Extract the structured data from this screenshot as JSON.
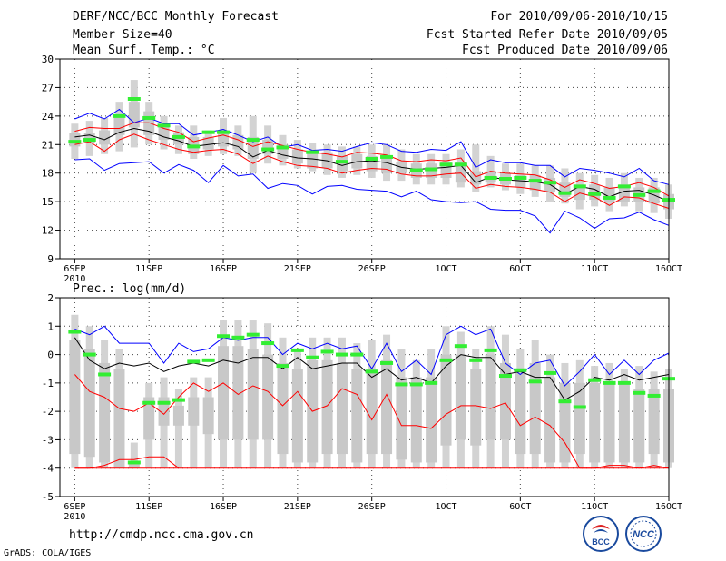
{
  "header": {
    "title": "DERF/NCC/BCC Monthly Forecast",
    "member_size": "Member Size=40",
    "variable": "Mean Surf. Temp.: °C",
    "forecast_period": "For 2010/09/06-2010/10/15",
    "started_date": "Fcst Started Refer Date 2010/09/05",
    "produced_date": "Fcst Produced Date 2010/09/06"
  },
  "footer": {
    "url": "http://cmdp.ncc.cma.gov.cn",
    "grads": "GrADS: COLA/IGES",
    "logo1_text": "BCC",
    "logo2_text": "NCC"
  },
  "colors": {
    "bar": "#d3d3d3",
    "median": "#33ee33",
    "mean": "#000000",
    "upper": "#0000ff",
    "lower": "#ff0000",
    "inner": "#cc3333"
  },
  "chart_data": [
    {
      "type": "boxplot_ensemble",
      "title": "Mean Surf. Temp.: °C",
      "x_tick_labels": [
        "6SEP\n2010",
        "11SEP",
        "16SEP",
        "21SEP",
        "26SEP",
        "1OCT",
        "6OCT",
        "11OCT",
        "16OCT"
      ],
      "x_tick_days": [
        1,
        6,
        11,
        16,
        21,
        26,
        31,
        36,
        41
      ],
      "xlim": [
        0,
        41
      ],
      "ylim": [
        9,
        30
      ],
      "yticks": [
        9,
        12,
        15,
        18,
        21,
        24,
        27,
        30
      ],
      "bar_low": [
        19.5,
        19.8,
        20.0,
        20.3,
        20.7,
        21.0,
        20.5,
        20.0,
        19.5,
        19.8,
        20.0,
        19.8,
        18.0,
        19.0,
        18.8,
        18.5,
        18.2,
        17.8,
        17.5,
        17.8,
        17.5,
        17.2,
        17.2,
        16.8,
        16.8,
        16.8,
        16.5,
        16.0,
        16.5,
        16.2,
        15.8,
        15.5,
        15.0,
        14.8,
        14.2,
        14.5,
        14.0,
        14.5,
        14.0,
        13.8,
        13.2
      ],
      "bar_high": [
        23.2,
        23.5,
        23.8,
        25.5,
        27.8,
        25.5,
        24.0,
        23.0,
        23.0,
        22.5,
        23.8,
        23.0,
        24.0,
        23.0,
        22.0,
        21.5,
        21.2,
        21.0,
        20.8,
        20.8,
        21.0,
        21.0,
        20.5,
        20.0,
        20.0,
        20.0,
        20.5,
        21.0,
        19.8,
        19.0,
        19.0,
        18.8,
        18.8,
        18.5,
        18.0,
        17.8,
        17.5,
        18.0,
        17.5,
        17.5,
        16.8
      ],
      "inner_low": [
        20.8,
        21.2,
        21.0,
        22.0,
        22.8,
        22.0,
        21.5,
        21.0,
        20.0,
        20.5,
        20.8,
        20.5,
        19.5,
        20.0,
        19.5,
        19.0,
        18.5,
        18.5,
        18.2,
        18.5,
        18.2,
        18.0,
        18.0,
        17.5,
        17.5,
        17.5,
        17.0,
        16.8,
        17.0,
        16.8,
        16.5,
        16.2,
        16.0,
        15.5,
        15.2,
        15.2,
        15.0,
        15.0,
        15.0,
        14.8,
        14.2
      ],
      "inner_high": [
        22.2,
        22.2,
        22.5,
        24.0,
        25.5,
        24.5,
        23.0,
        22.3,
        21.8,
        21.8,
        22.5,
        22.0,
        21.8,
        21.5,
        21.0,
        20.5,
        20.2,
        20.2,
        19.8,
        20.0,
        19.8,
        19.8,
        19.2,
        19.0,
        19.0,
        19.2,
        19.2,
        18.2,
        18.2,
        18.0,
        17.8,
        17.8,
        17.5,
        17.0,
        16.8,
        16.8,
        16.5,
        16.8,
        16.5,
        16.5,
        15.8
      ],
      "median": [
        21.3,
        21.5,
        null,
        24.0,
        25.8,
        23.8,
        23.0,
        21.8,
        20.8,
        22.3,
        22.3,
        null,
        21.5,
        20.5,
        20.7,
        null,
        20.2,
        null,
        19.2,
        null,
        19.5,
        19.7,
        null,
        18.3,
        18.4,
        18.9,
        18.9,
        null,
        17.5,
        17.4,
        17.5,
        17.2,
        17.0,
        15.9,
        16.6,
        15.8,
        15.4,
        16.6,
        15.7,
        16.1,
        15.2
      ],
      "series": [
        {
          "name": "max",
          "color": "#0000ff",
          "values": [
            23.7,
            24.3,
            23.7,
            24.7,
            23.3,
            23.8,
            23.2,
            23.2,
            22.0,
            22.3,
            22.6,
            22.0,
            21.3,
            21.8,
            20.7,
            21.0,
            20.4,
            20.5,
            20.3,
            20.8,
            21.2,
            21.0,
            20.3,
            20.2,
            20.5,
            20.4,
            21.3,
            18.6,
            19.4,
            19.1,
            19.1,
            18.8,
            18.8,
            17.6,
            18.5,
            18.3,
            18.0,
            17.6,
            18.5,
            17.2,
            16.8
          ]
        },
        {
          "name": "ens_upper",
          "color": "#ff0000",
          "values": [
            22.4,
            22.8,
            22.7,
            22.7,
            23.3,
            23.3,
            22.7,
            22.3,
            21.3,
            21.7,
            22.0,
            21.5,
            20.8,
            21.3,
            20.9,
            20.5,
            20.2,
            20.0,
            19.7,
            20.2,
            20.1,
            19.9,
            19.3,
            19.2,
            19.4,
            19.3,
            19.6,
            17.6,
            18.2,
            18.0,
            17.9,
            17.8,
            17.3,
            16.5,
            17.3,
            16.9,
            16.4,
            16.6,
            17.0,
            16.5,
            15.6
          ]
        },
        {
          "name": "mean",
          "color": "#000000",
          "values": [
            21.8,
            22.0,
            21.5,
            22.3,
            22.7,
            22.4,
            21.8,
            21.4,
            20.8,
            21.0,
            21.2,
            20.8,
            19.7,
            20.4,
            19.9,
            19.6,
            19.5,
            19.3,
            18.8,
            19.2,
            19.3,
            19.1,
            18.6,
            18.4,
            18.5,
            18.6,
            18.8,
            17.0,
            17.6,
            17.3,
            17.2,
            17.1,
            16.8,
            15.8,
            16.6,
            16.3,
            15.5,
            16.1,
            16.2,
            15.7,
            15.0
          ]
        },
        {
          "name": "ens_lower",
          "color": "#ff0000",
          "values": [
            21.0,
            21.3,
            20.3,
            21.5,
            22.1,
            21.5,
            21.0,
            20.5,
            20.2,
            20.4,
            20.5,
            20.0,
            19.0,
            19.8,
            19.2,
            18.8,
            18.7,
            18.5,
            18.0,
            18.3,
            18.5,
            18.4,
            17.9,
            17.7,
            17.7,
            17.9,
            18.0,
            16.4,
            16.8,
            16.6,
            16.5,
            16.3,
            16.0,
            15.0,
            15.9,
            15.5,
            14.6,
            15.5,
            15.4,
            14.8,
            14.3
          ]
        },
        {
          "name": "min",
          "color": "#0000ff",
          "values": [
            19.4,
            19.5,
            18.3,
            19.0,
            19.1,
            19.2,
            18.0,
            18.9,
            18.3,
            17.0,
            18.8,
            17.7,
            17.9,
            16.4,
            16.9,
            16.7,
            15.8,
            16.6,
            16.7,
            16.3,
            16.2,
            16.1,
            15.5,
            16.1,
            15.2,
            15.0,
            14.9,
            15.0,
            14.2,
            14.1,
            14.1,
            13.5,
            11.7,
            14.0,
            13.3,
            12.2,
            13.2,
            13.3,
            13.9,
            13.1,
            12.5
          ]
        }
      ]
    },
    {
      "type": "boxplot_ensemble",
      "title": "Prec.: log(mm/d)",
      "x_tick_labels": [
        "6SEP\n2010",
        "11SEP",
        "16SEP",
        "21SEP",
        "26SEP",
        "1OCT",
        "6OCT",
        "11OCT",
        "16OCT"
      ],
      "x_tick_days": [
        1,
        6,
        11,
        16,
        21,
        26,
        31,
        36,
        41
      ],
      "xlim": [
        0,
        41
      ],
      "ylim": [
        -5,
        2
      ],
      "yticks": [
        -5,
        -4,
        -3,
        -2,
        -1,
        0,
        1,
        2
      ],
      "bar_low": [
        -4,
        -4,
        -4,
        -4,
        -4,
        -4,
        -4,
        -4,
        -4,
        -4,
        -4,
        -4,
        -4,
        -4,
        -4,
        -4,
        -4,
        -4,
        -4,
        -4,
        -4,
        -4,
        -4,
        -4,
        -4,
        -4,
        -4,
        -4,
        -4,
        -4,
        -4,
        -4,
        -4,
        -4,
        -4,
        -4,
        -4,
        -4,
        -4,
        -4,
        -4
      ],
      "bar_high": [
        1.4,
        1.0,
        0.5,
        0.2,
        -3.1,
        -1.0,
        -0.8,
        -1.2,
        -0.8,
        -0.8,
        1.2,
        1.2,
        1.2,
        1.1,
        0.6,
        0.2,
        0.6,
        0.6,
        0.6,
        0.4,
        0.5,
        0.7,
        0.2,
        -0.2,
        0.2,
        1.0,
        0.8,
        0.2,
        1.0,
        0.7,
        0.2,
        0.5,
        0.0,
        -0.3,
        -0.2,
        -0.4,
        -0.3,
        -0.5,
        -0.4,
        -0.6,
        -0.5
      ],
      "inner_low": [
        -3.5,
        -3.6,
        -3.8,
        -4.0,
        -4.0,
        -3.0,
        -2.5,
        -2.5,
        -2.5,
        -2.8,
        -3.0,
        -3.0,
        -3.0,
        -3.0,
        -3.5,
        -3.8,
        -3.8,
        -3.5,
        -3.5,
        -3.8,
        -3.5,
        -3.5,
        -3.7,
        -3.8,
        -3.8,
        -3.2,
        -3.0,
        -3.2,
        -3.0,
        -3.0,
        -3.5,
        -3.5,
        -3.8,
        -3.8,
        -3.5,
        -3.8,
        -3.8,
        -3.8,
        -3.8,
        -3.5,
        -3.8
      ],
      "inner_high": [
        0.5,
        0.2,
        -0.3,
        -0.5,
        -3.8,
        -1.5,
        -1.5,
        -1.8,
        -1.5,
        -1.5,
        0.3,
        0.3,
        0.2,
        0.0,
        -0.3,
        -0.5,
        -0.2,
        -0.2,
        -0.3,
        -0.5,
        -0.5,
        -0.2,
        -0.8,
        -0.8,
        -0.8,
        0.0,
        0.0,
        -0.5,
        0.0,
        -0.3,
        -0.5,
        -0.3,
        -0.8,
        -1.0,
        -1.0,
        -1.0,
        -1.0,
        -1.0,
        -1.2,
        -1.2,
        -1.2
      ],
      "median": [
        0.8,
        0.0,
        -0.7,
        null,
        -3.8,
        -1.7,
        -1.7,
        -1.6,
        -0.25,
        -0.2,
        0.65,
        0.6,
        0.7,
        0.4,
        -0.4,
        0.15,
        -0.1,
        0.1,
        0.0,
        0.0,
        -0.6,
        -0.3,
        -1.05,
        -1.05,
        -1.0,
        -0.2,
        0.3,
        -0.2,
        0.15,
        -0.75,
        -0.55,
        -0.95,
        -0.65,
        -1.65,
        -1.85,
        -0.9,
        -1.0,
        -1.0,
        -1.35,
        -1.45,
        -0.85
      ],
      "series": [
        {
          "name": "max",
          "color": "#0000ff",
          "values": [
            0.9,
            0.7,
            1.0,
            0.4,
            0.4,
            0.4,
            -0.3,
            0.4,
            0.1,
            0.2,
            0.6,
            0.5,
            0.6,
            0.6,
            0.0,
            0.4,
            0.2,
            0.4,
            0.2,
            0.3,
            -0.5,
            0.4,
            -0.6,
            -0.2,
            -0.7,
            0.7,
            1.0,
            0.7,
            0.9,
            -0.3,
            -0.7,
            -0.3,
            -0.2,
            -1.1,
            -0.6,
            0.0,
            -0.7,
            -0.2,
            -0.7,
            -0.2,
            0.05
          ]
        },
        {
          "name": "mean",
          "color": "#000000",
          "values": [
            0.6,
            -0.2,
            -0.5,
            -0.3,
            -0.4,
            -0.3,
            -0.6,
            -0.4,
            -0.3,
            -0.4,
            -0.2,
            -0.3,
            -0.1,
            -0.1,
            -0.5,
            -0.1,
            -0.5,
            -0.4,
            -0.3,
            -0.3,
            -0.8,
            -0.5,
            -0.9,
            -0.8,
            -1.0,
            -0.4,
            0.0,
            -0.1,
            -0.1,
            -0.7,
            -0.6,
            -0.8,
            -0.8,
            -1.6,
            -1.3,
            -0.8,
            -0.9,
            -0.7,
            -0.9,
            -0.8,
            -0.7
          ]
        },
        {
          "name": "ens_lower",
          "color": "#ff0000",
          "values": [
            -0.7,
            -1.3,
            -1.5,
            -1.9,
            -2.0,
            -1.7,
            -2.1,
            -1.5,
            -1.0,
            -1.3,
            -1.0,
            -1.4,
            -1.1,
            -1.3,
            -1.8,
            -1.3,
            -2.0,
            -1.8,
            -1.2,
            -1.4,
            -2.3,
            -1.4,
            -2.5,
            -2.5,
            -2.6,
            -2.1,
            -1.8,
            -1.8,
            -1.9,
            -1.7,
            -2.5,
            -2.2,
            -2.5,
            -3.1,
            -4.0,
            -4.0,
            -3.9,
            -3.9,
            -4.0,
            -3.9,
            -4.0
          ]
        },
        {
          "name": "min",
          "color": "#ff0000",
          "values": [
            -4,
            -4,
            -4,
            -4,
            -4,
            -4,
            -4,
            -4,
            -4,
            -4,
            -4,
            -4,
            -4,
            -4,
            -4,
            -4,
            -4,
            -4,
            -4,
            -4,
            -4,
            -4,
            -4,
            -4,
            -4,
            -4,
            -4,
            -4,
            -4,
            -4,
            -4,
            -4,
            -4,
            -4,
            -4,
            -4,
            -4,
            -4,
            -4,
            -4,
            -4
          ]
        },
        {
          "name": "min_early",
          "color": "#ff0000",
          "values": [
            -4.0,
            -4.0,
            -3.9,
            -3.7,
            -3.7,
            -3.6,
            -3.6,
            -4.0,
            null,
            null,
            null,
            null,
            null,
            null,
            null,
            null,
            null,
            null,
            null,
            null,
            null,
            null,
            null,
            null,
            null,
            null,
            null,
            null,
            null,
            null,
            null,
            null,
            null,
            null,
            null,
            null,
            null,
            null,
            null,
            null,
            null
          ]
        }
      ]
    }
  ]
}
